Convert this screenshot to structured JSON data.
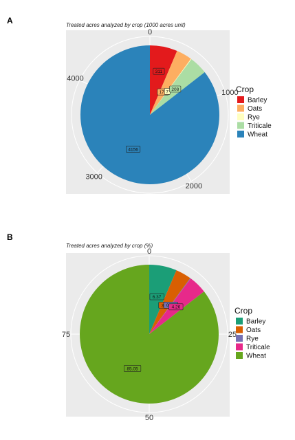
{
  "chart_data": [
    {
      "type": "pie",
      "panel": "A",
      "title": "Treated acres analyzed by crop (1000 acres unit)",
      "categories": [
        "Barley",
        "Oats",
        "Rye",
        "Triticale",
        "Wheat"
      ],
      "values": [
        311,
        178,
        7,
        208,
        4156
      ],
      "value_labels": [
        "311",
        "178",
        "7",
        "208",
        "4156"
      ],
      "ticks": [
        0,
        1000,
        2000,
        3000,
        4000
      ],
      "tick_labels": [
        "0",
        "1000",
        "2000",
        "3000",
        "4000"
      ],
      "legend_title": "Crop",
      "legend_position": "right",
      "colors": [
        "#e31a1c",
        "#fdae61",
        "#ffffbf",
        "#abdda4",
        "#2b83ba"
      ]
    },
    {
      "type": "pie",
      "panel": "B",
      "title": "Treated acres analyzed by crop (%)",
      "categories": [
        "Barley",
        "Oats",
        "Rye",
        "Triticale",
        "Wheat"
      ],
      "values": [
        6.37,
        3.64,
        0.14,
        4.26,
        85.05
      ],
      "value_labels": [
        "6.37",
        "3.64",
        "0.14",
        "4.26",
        "85.05"
      ],
      "ticks": [
        0,
        25,
        50,
        75
      ],
      "tick_labels": [
        "0",
        "25",
        "50",
        "75"
      ],
      "legend_title": "Crop",
      "legend_position": "right",
      "colors": [
        "#1b9e77",
        "#d95f02",
        "#7570b3",
        "#e7298a",
        "#66a61e"
      ]
    }
  ]
}
